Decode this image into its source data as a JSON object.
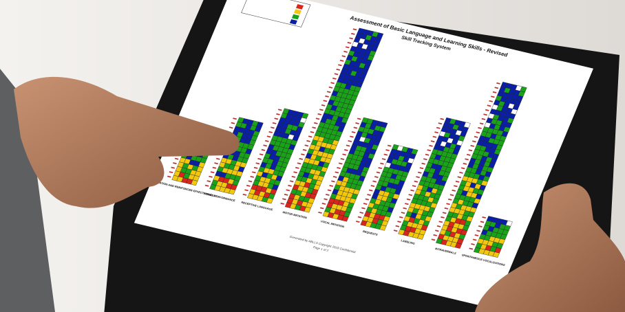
{
  "screen": {
    "title": "Assessment of Basic Language and Learning Skills - Revised",
    "subtitle": "Skill Tracking System",
    "columns": [
      {
        "label": "COOPERATION AND REINFORCER EFFECTIVENESS"
      },
      {
        "label": "VISUAL PERFORMANCE"
      },
      {
        "label": "RECEPTIVE LANGUAGE"
      },
      {
        "label": "MOTOR IMITATION"
      },
      {
        "label": "VOCAL IMITATION"
      },
      {
        "label": "REQUESTS"
      },
      {
        "label": "LABELING"
      },
      {
        "label": "INTRAVERBALS"
      },
      {
        "label": "SPONTANEOUS VOCALIZATIONS"
      }
    ],
    "footer": "Generated by ABLLS Copyright 2018 Confidential",
    "page": "Page 1 of 2"
  }
}
